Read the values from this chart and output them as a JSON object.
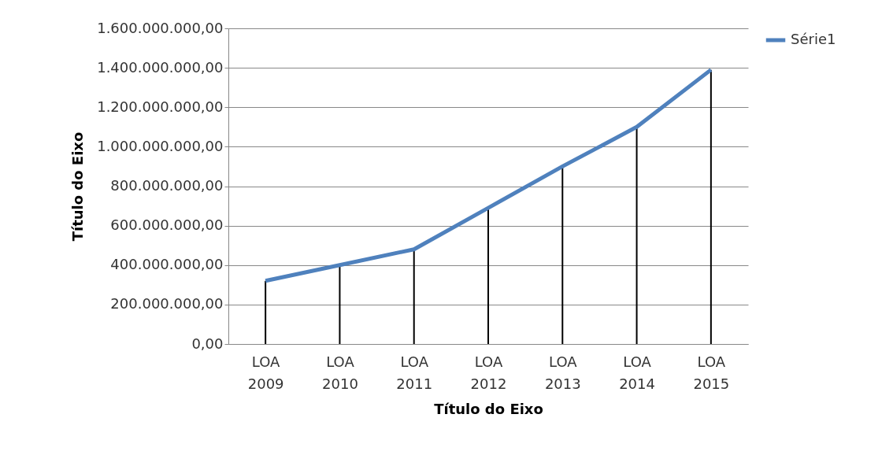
{
  "chart_data": {
    "type": "line",
    "xlabel": "Título do Eixo",
    "ylabel": "Título do Eixo",
    "categories": [
      "LOA 2009",
      "LOA 2010",
      "LOA 2011",
      "LOA 2012",
      "LOA 2013",
      "LOA 2014",
      "LOA 2015"
    ],
    "series": [
      {
        "name": "Série1",
        "color": "#4f81bd",
        "values": [
          320000000,
          400000000,
          480000000,
          690000000,
          900000000,
          1100000000,
          1390000000
        ],
        "errors": [
          [
            320000000,
            0
          ],
          [
            400000000,
            0
          ],
          [
            480000000,
            0
          ],
          [
            690000000,
            0
          ],
          [
            900000000,
            0
          ],
          [
            1100000000,
            0
          ],
          [
            1390000000,
            0
          ]
        ]
      }
    ],
    "ylim": [
      0,
      1600000000
    ],
    "yticks": [
      {
        "value": 0,
        "label": "0,00"
      },
      {
        "value": 200000000,
        "label": "200.000.000,00"
      },
      {
        "value": 400000000,
        "label": "400.000.000,00"
      },
      {
        "value": 600000000,
        "label": "600.000.000,00"
      },
      {
        "value": 800000000,
        "label": "800.000.000,00"
      },
      {
        "value": 1000000000,
        "label": "1.000.000.000,00"
      },
      {
        "value": 1200000000,
        "label": "1.200.000.000,00"
      },
      {
        "value": 1400000000,
        "label": "1.400.000.000,00"
      },
      {
        "value": 1600000000,
        "label": "1.600.000.000,00"
      }
    ],
    "grid": "y",
    "legend": "right",
    "marker": "none",
    "line_style": "solid"
  }
}
